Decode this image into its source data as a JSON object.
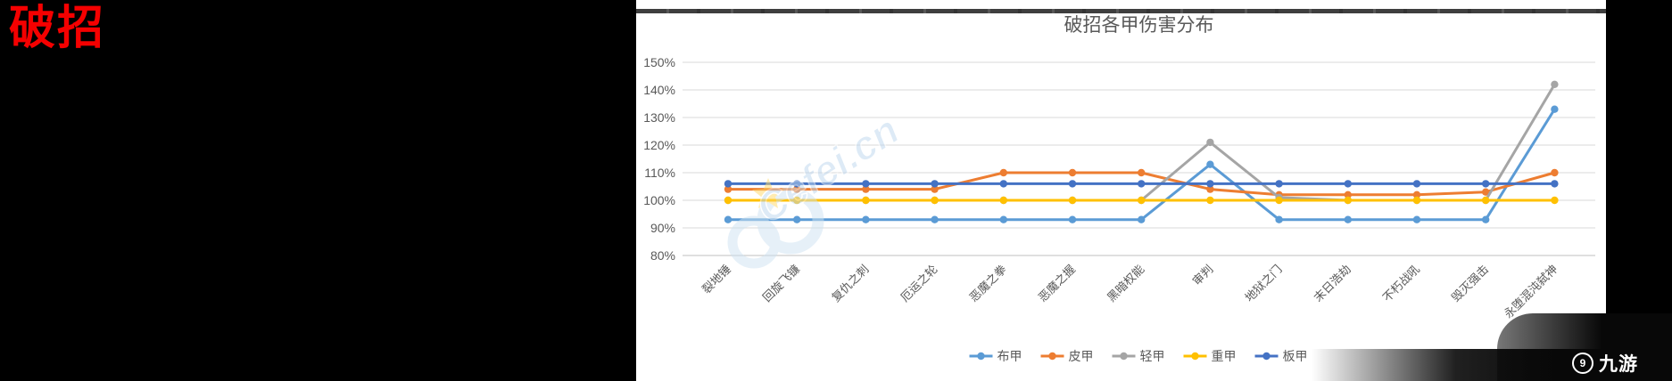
{
  "page": {
    "left_caption": "破招",
    "watermark_text": "Cefei.cn",
    "brand_logo_text": "九游",
    "brand_icon_glyph": "9"
  },
  "colors": {
    "caption_red": "#f50000",
    "title_gray": "#595959",
    "gridline": "#d9d9d9",
    "axis_line": "#bfbfbf",
    "panel_bg": "#ffffff",
    "page_bg": "#000000"
  },
  "chart_data": {
    "type": "line",
    "title": "破招各甲伤害分布",
    "categories": [
      "裂地锤",
      "回旋飞镰",
      "复仇之刺",
      "厄运之轮",
      "恶魔之拳",
      "恶魔之握",
      "黑暗权能",
      "审判",
      "地狱之门",
      "末日浩劫",
      "不朽战吼",
      "毁灭强击",
      "永堕混沌弑神"
    ],
    "series": [
      {
        "name": "布甲",
        "color": "#5B9BD5",
        "values": [
          93,
          93,
          93,
          93,
          93,
          93,
          93,
          113,
          93,
          93,
          93,
          93,
          133
        ]
      },
      {
        "name": "皮甲",
        "color": "#ED7D31",
        "values": [
          104,
          104,
          104,
          104,
          110,
          110,
          110,
          104,
          102,
          102,
          102,
          103,
          110
        ]
      },
      {
        "name": "轻甲",
        "color": "#A5A5A5",
        "values": [
          100,
          100,
          100,
          100,
          100,
          100,
          100,
          121,
          101,
          100,
          100,
          100,
          142
        ]
      },
      {
        "name": "重甲",
        "color": "#FFC000",
        "values": [
          100,
          100,
          100,
          100,
          100,
          100,
          100,
          100,
          100,
          100,
          100,
          100,
          100
        ]
      },
      {
        "name": "板甲",
        "color": "#4472C4",
        "values": [
          106,
          106,
          106,
          106,
          106,
          106,
          106,
          106,
          106,
          106,
          106,
          106,
          106
        ]
      }
    ],
    "y_ticks": [
      "80%",
      "90%",
      "100%",
      "110%",
      "120%",
      "130%",
      "140%",
      "150%"
    ],
    "ylim": [
      80,
      150
    ],
    "y_step": 10,
    "grid": true,
    "legend_position": "bottom",
    "x_label_rotation_deg": -45
  }
}
